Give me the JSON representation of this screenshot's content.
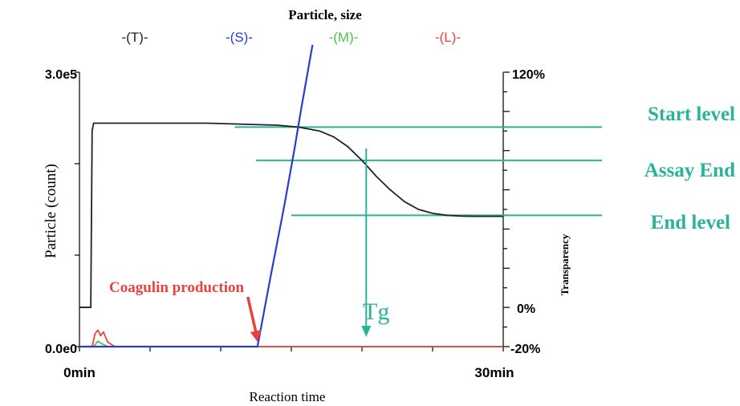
{
  "chart_data": {
    "type": "line",
    "title": "Particle, size",
    "xlabel": "Reaction time",
    "ylabel": "Particle (count)",
    "y2label": "Transparency",
    "xlim": [
      0,
      30
    ],
    "ylim": [
      0,
      300000
    ],
    "y2lim": [
      -20,
      120
    ],
    "x_ticks": [
      "0min",
      "30min"
    ],
    "y_ticks": [
      "0.0e0",
      "3.0e5"
    ],
    "y2_ticks": [
      "-20%",
      "0%",
      "120%"
    ],
    "legend": [
      {
        "label": "-(T)-",
        "color": "#222222"
      },
      {
        "label": "-(S)-",
        "color": "#2a3cd0"
      },
      {
        "label": "-(M)-",
        "color": "#4cc24c"
      },
      {
        "label": "-(L)-",
        "color": "#e8423c"
      }
    ],
    "series": [
      {
        "name": "T",
        "axis": "right",
        "color": "#222222",
        "x": [
          0,
          0.8,
          0.9,
          1,
          9,
          14,
          15.5,
          17,
          18,
          19,
          20,
          21,
          22,
          23,
          24,
          25,
          26,
          27,
          28,
          30
        ],
        "y": [
          0,
          0,
          90,
          94,
          94,
          93,
          92,
          90,
          87,
          82,
          75,
          67,
          60,
          54,
          50,
          48,
          47,
          46.6,
          46.5,
          46.5
        ]
      },
      {
        "name": "S",
        "axis": "left",
        "color": "#2a3cd0",
        "x": [
          0,
          12.6,
          13.5,
          14.5,
          15.2,
          15.7,
          16.5
        ],
        "y": [
          0,
          0,
          74000,
          154000,
          214000,
          260000,
          330000
        ]
      },
      {
        "name": "M",
        "axis": "left",
        "color": "#4cc24c",
        "x": [
          0,
          1,
          1.3,
          1.6,
          2,
          30
        ],
        "y": [
          0,
          0,
          6000,
          3000,
          0,
          0
        ]
      },
      {
        "name": "L",
        "axis": "left",
        "color": "#e8423c",
        "x": [
          0,
          0.9,
          1.1,
          1.3,
          1.5,
          1.7,
          2,
          2.5,
          30
        ],
        "y": [
          0,
          0,
          14000,
          18000,
          12000,
          16000,
          5000,
          0,
          0
        ]
      }
    ],
    "reference_lines": [
      {
        "label": "Start level",
        "y2": 92,
        "x_from": 11,
        "color": "#2ab39a"
      },
      {
        "label": "Assay End",
        "y2": 75,
        "x_from": 12.5,
        "color": "#2ab39a"
      },
      {
        "label": "End level",
        "y2": 47,
        "x_from": 15,
        "color": "#2ab39a"
      }
    ],
    "annotations": [
      {
        "text": "Coagulin production",
        "color": "#e8423c",
        "x": 12.6
      },
      {
        "text": "Tg",
        "color": "#2ab39a",
        "x": 20.3
      }
    ],
    "grid": false
  }
}
